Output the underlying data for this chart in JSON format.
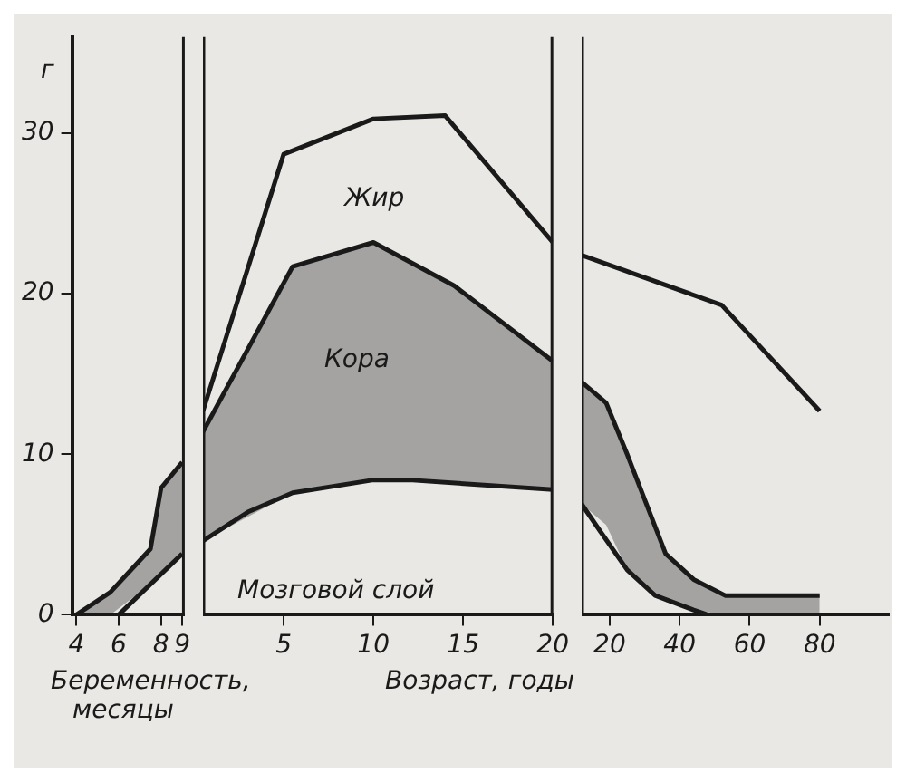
{
  "chart_data": [
    {
      "type": "line",
      "ylabel": "г",
      "xlabel": "Беременность, месяцы",
      "xlim": [
        3.8,
        9.1
      ],
      "xticks": [
        4,
        6,
        8,
        9
      ],
      "ylim": [
        0,
        36
      ],
      "yticks": [
        0,
        10,
        20,
        30
      ],
      "marker": "none",
      "series": [
        {
          "color": "#1a1a1a",
          "x": [
            4,
            5.6,
            7.5,
            8,
            9
          ],
          "values": [
            0,
            1.4,
            4.1,
            7.9,
            9.5
          ],
          "lower": [
            0,
            0,
            1.9,
            2.5,
            3.8
          ],
          "upper": [
            0,
            1.4,
            4.1,
            7.9,
            9.5
          ]
        },
        {
          "color": "#1a1a1a",
          "x": [
            6,
            9
          ],
          "values": [
            0,
            3.8
          ]
        }
      ]
    },
    {
      "type": "line",
      "xlabel": "Возраст, годы",
      "xlim": [
        0.5,
        20
      ],
      "xticks": [
        5,
        10,
        15,
        20
      ],
      "ylim": [
        0,
        36
      ],
      "yticks": [
        0,
        10,
        20,
        30
      ],
      "tick_labels": "x",
      "marker": "none",
      "annotations": [
        "Жир",
        "Кора",
        "Мозговой слой"
      ],
      "series": [
        {
          "color": "#1a1a1a",
          "x": [
            0.5,
            5,
            10,
            14,
            20
          ],
          "values": [
            12.7,
            28.7,
            30.9,
            31.1,
            23.2
          ]
        },
        {
          "color": "#1a1a1a",
          "x": [
            0.5,
            5.5,
            10,
            14.5,
            20
          ],
          "values": [
            11.4,
            21.7,
            23.2,
            20.5,
            15.8
          ],
          "lower": [
            4.6,
            7.6,
            8.4,
            8.3,
            7.8
          ],
          "upper": [
            11.4,
            21.7,
            23.2,
            20.5,
            15.8
          ]
        },
        {
          "color": "#1a1a1a",
          "x": [
            0.5,
            3,
            5.5,
            10,
            12,
            20
          ],
          "values": [
            4.6,
            6.4,
            7.6,
            8.4,
            8.4,
            7.8
          ]
        }
      ]
    },
    {
      "type": "line",
      "xlim": [
        12,
        100
      ],
      "xticks": [
        20,
        40,
        60,
        80
      ],
      "ylim": [
        0,
        36
      ],
      "yticks": [
        0,
        10,
        20,
        30
      ],
      "tick_labels": "x",
      "marker": "none",
      "series": [
        {
          "color": "#1a1a1a",
          "x": [
            12,
            52,
            80
          ],
          "values": [
            22.4,
            19.3,
            12.7
          ]
        },
        {
          "color": "#1a1a1a",
          "x": [
            12,
            19,
            25,
            36,
            44,
            53,
            80
          ],
          "values": [
            14.5,
            13.2,
            10,
            3.8,
            2.2,
            1.2,
            1.2
          ],
          "lower": [
            6.9,
            5.6,
            2.8,
            0.8,
            0.3,
            0,
            0
          ],
          "upper": [
            14.5,
            13.2,
            10,
            3.8,
            2.2,
            1.2,
            1.2
          ]
        },
        {
          "color": "#1a1a1a",
          "x": [
            12,
            17,
            25,
            33,
            44,
            48
          ],
          "values": [
            6.9,
            5.3,
            2.8,
            1.2,
            0.3,
            0
          ]
        }
      ]
    }
  ]
}
